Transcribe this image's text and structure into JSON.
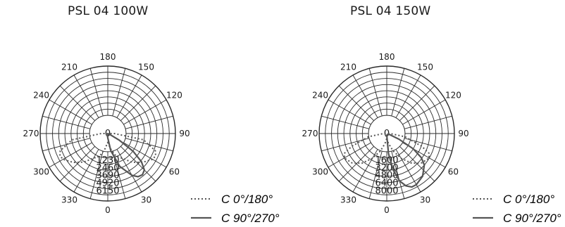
{
  "chart_data": [
    {
      "type": "polar",
      "title": "PSL 04 100W",
      "angle_labels": [
        "0",
        "30",
        "60",
        "90",
        "120",
        "150",
        "180",
        "210",
        "240",
        "270",
        "300",
        "330"
      ],
      "radial_labels": [
        "1230",
        "2460",
        "3690",
        "4920",
        "6150"
      ],
      "rmax": 6150,
      "series": [
        {
          "name": "C 0°/180°",
          "style": "dotted",
          "points": [
            {
              "angle": 0,
              "value": 800
            },
            {
              "angle": 10,
              "value": 1400
            },
            {
              "angle": 20,
              "value": 2200
            },
            {
              "angle": 30,
              "value": 2600
            },
            {
              "angle": 40,
              "value": 3400
            },
            {
              "angle": 50,
              "value": 4100
            },
            {
              "angle": 60,
              "value": 4700
            },
            {
              "angle": 65,
              "value": 4800
            },
            {
              "angle": 70,
              "value": 4600
            },
            {
              "angle": 80,
              "value": 3300
            },
            {
              "angle": 90,
              "value": 600
            },
            {
              "angle": 270,
              "value": 600
            },
            {
              "angle": 280,
              "value": 3300
            },
            {
              "angle": 290,
              "value": 4600
            },
            {
              "angle": 295,
              "value": 4800
            },
            {
              "angle": 300,
              "value": 4700
            },
            {
              "angle": 310,
              "value": 4100
            },
            {
              "angle": 320,
              "value": 3400
            },
            {
              "angle": 330,
              "value": 2600
            },
            {
              "angle": 340,
              "value": 2200
            },
            {
              "angle": 350,
              "value": 1400
            }
          ]
        },
        {
          "name": "C 90°/270°",
          "style": "solid",
          "points": [
            {
              "angle": 0,
              "value": 400
            },
            {
              "angle": 10,
              "value": 1600
            },
            {
              "angle": 20,
              "value": 3200
            },
            {
              "angle": 30,
              "value": 4400
            },
            {
              "angle": 35,
              "value": 4800
            },
            {
              "angle": 40,
              "value": 4900
            },
            {
              "angle": 45,
              "value": 4700
            },
            {
              "angle": 50,
              "value": 4000
            },
            {
              "angle": 55,
              "value": 2800
            },
            {
              "angle": 60,
              "value": 1200
            },
            {
              "angle": 75,
              "value": 100
            },
            {
              "angle": 340,
              "value": 200
            },
            {
              "angle": 350,
              "value": 200
            }
          ]
        }
      ]
    },
    {
      "type": "polar",
      "title": "PSL 04 150W",
      "angle_labels": [
        "0",
        "30",
        "60",
        "90",
        "120",
        "150",
        "180",
        "210",
        "240",
        "270",
        "300",
        "330"
      ],
      "radial_labels": [
        "1600",
        "3200",
        "4800",
        "6400",
        "8000"
      ],
      "rmax": 8000,
      "series": [
        {
          "name": "C 0°/180°",
          "style": "dotted",
          "points": [
            {
              "angle": 0,
              "value": 600
            },
            {
              "angle": 10,
              "value": 1200
            },
            {
              "angle": 20,
              "value": 2200
            },
            {
              "angle": 30,
              "value": 3400
            },
            {
              "angle": 40,
              "value": 4600
            },
            {
              "angle": 50,
              "value": 5400
            },
            {
              "angle": 60,
              "value": 5800
            },
            {
              "angle": 65,
              "value": 5500
            },
            {
              "angle": 70,
              "value": 4400
            },
            {
              "angle": 80,
              "value": 2200
            },
            {
              "angle": 90,
              "value": 400
            },
            {
              "angle": 270,
              "value": 400
            },
            {
              "angle": 280,
              "value": 2200
            },
            {
              "angle": 290,
              "value": 4400
            },
            {
              "angle": 295,
              "value": 5500
            },
            {
              "angle": 300,
              "value": 5800
            },
            {
              "angle": 310,
              "value": 5400
            },
            {
              "angle": 320,
              "value": 4600
            },
            {
              "angle": 330,
              "value": 3400
            },
            {
              "angle": 340,
              "value": 2200
            },
            {
              "angle": 350,
              "value": 1200
            }
          ]
        },
        {
          "name": "C 90°/270°",
          "style": "solid",
          "points": [
            {
              "angle": 0,
              "value": 200
            },
            {
              "angle": 5,
              "value": 2400
            },
            {
              "angle": 10,
              "value": 4400
            },
            {
              "angle": 15,
              "value": 5800
            },
            {
              "angle": 20,
              "value": 6600
            },
            {
              "angle": 25,
              "value": 7000
            },
            {
              "angle": 30,
              "value": 7000
            },
            {
              "angle": 40,
              "value": 6600
            },
            {
              "angle": 50,
              "value": 5800
            },
            {
              "angle": 55,
              "value": 5000
            },
            {
              "angle": 60,
              "value": 3600
            },
            {
              "angle": 65,
              "value": 1600
            },
            {
              "angle": 75,
              "value": 200
            },
            {
              "angle": 340,
              "value": 300
            },
            {
              "angle": 350,
              "value": 300
            }
          ]
        }
      ]
    }
  ],
  "legend": {
    "dotted_label": "C  0°/180°",
    "solid_label": "C 90°/270°"
  },
  "colors": {
    "grid": "#2a2a2a",
    "curve": "#555555"
  }
}
